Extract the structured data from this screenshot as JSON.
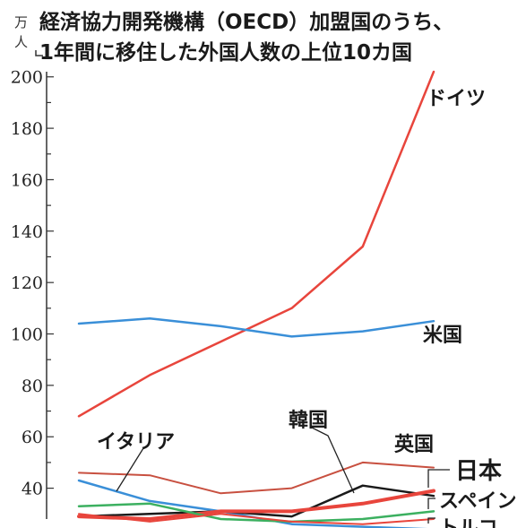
{
  "chart_data": {
    "type": "line",
    "title_lines": [
      "経済協力開発機構（OECD）加盟国のうち、",
      "1年間に移住した外国人数の上位10カ国"
    ],
    "unit_top": "万",
    "unit_bottom": "人",
    "x": [
      0,
      1,
      2,
      3,
      4,
      5
    ],
    "ylim": [
      28,
      202
    ],
    "yticks": [
      40,
      60,
      80,
      100,
      120,
      140,
      160,
      180,
      200
    ],
    "series": [
      {
        "name": "ドイツ",
        "color": "#e8453c",
        "width": 2.5,
        "values": [
          68,
          84,
          97,
          110,
          134,
          202
        ]
      },
      {
        "name": "米国",
        "color": "#3a8fd8",
        "width": 2.5,
        "values": [
          104,
          106,
          103,
          99,
          101,
          105
        ]
      },
      {
        "name": "英国",
        "color": "#c85040",
        "width": 2,
        "values": [
          46,
          45,
          38,
          40,
          50,
          48
        ]
      },
      {
        "name": "イタリア",
        "color": "#3a8fd8",
        "width": 2.5,
        "values": [
          43,
          35,
          31,
          26,
          25,
          24
        ]
      },
      {
        "name": "韓国",
        "color": "#1a1a1a",
        "width": 2.5,
        "values": [
          29,
          30,
          31,
          29,
          41,
          37
        ]
      },
      {
        "name": "日本",
        "color": "#e8453c",
        "width": 4,
        "values": [
          29,
          28,
          31,
          31,
          34,
          39
        ]
      },
      {
        "name": "スペイン",
        "color": "#3cb060",
        "width": 2.5,
        "values": [
          33,
          34,
          28,
          27,
          28,
          31
        ]
      },
      {
        "name": "",
        "color": "#e8453c",
        "width": 2,
        "values": [
          30,
          27,
          30,
          27,
          26,
          28
        ]
      }
    ],
    "labels": {
      "germany": "ドイツ",
      "usa": "米国",
      "italy": "イタリア",
      "korea": "韓国",
      "uk": "英国",
      "japan": "日本",
      "spain": "スペイン",
      "cut_off": "トルコ"
    }
  }
}
